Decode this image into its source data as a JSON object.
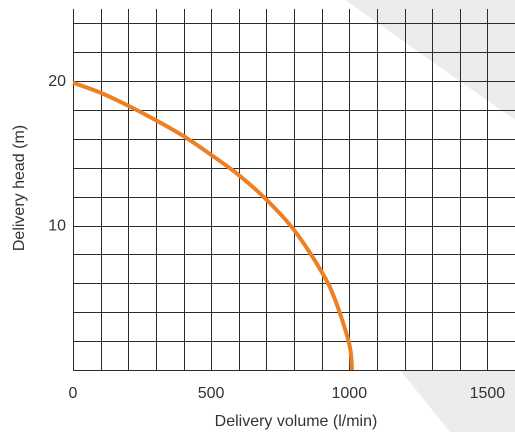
{
  "chart_data": {
    "type": "line",
    "xlabel": "Delivery volume (l/min)",
    "ylabel": "Delivery head (m)",
    "xlim": [
      0,
      1600
    ],
    "ylim": [
      0,
      25
    ],
    "x_ticks": [
      0,
      500,
      1000,
      1500
    ],
    "x_tick_labels": [
      "0",
      "500",
      "1000",
      "1500"
    ],
    "y_ticks": [
      10,
      20
    ],
    "y_tick_labels": [
      "10",
      "20"
    ],
    "grid": true,
    "grid_x_step": 100,
    "grid_y_step": 2,
    "series": [
      {
        "color": "#ee7f22",
        "x": [
          0,
          100,
          200,
          300,
          400,
          500,
          600,
          700,
          800,
          900,
          950,
          1000,
          1010
        ],
        "y": [
          19.9,
          19.2,
          18.3,
          17.3,
          16.2,
          14.9,
          13.5,
          11.8,
          9.7,
          6.8,
          4.8,
          1.8,
          0
        ]
      }
    ]
  }
}
